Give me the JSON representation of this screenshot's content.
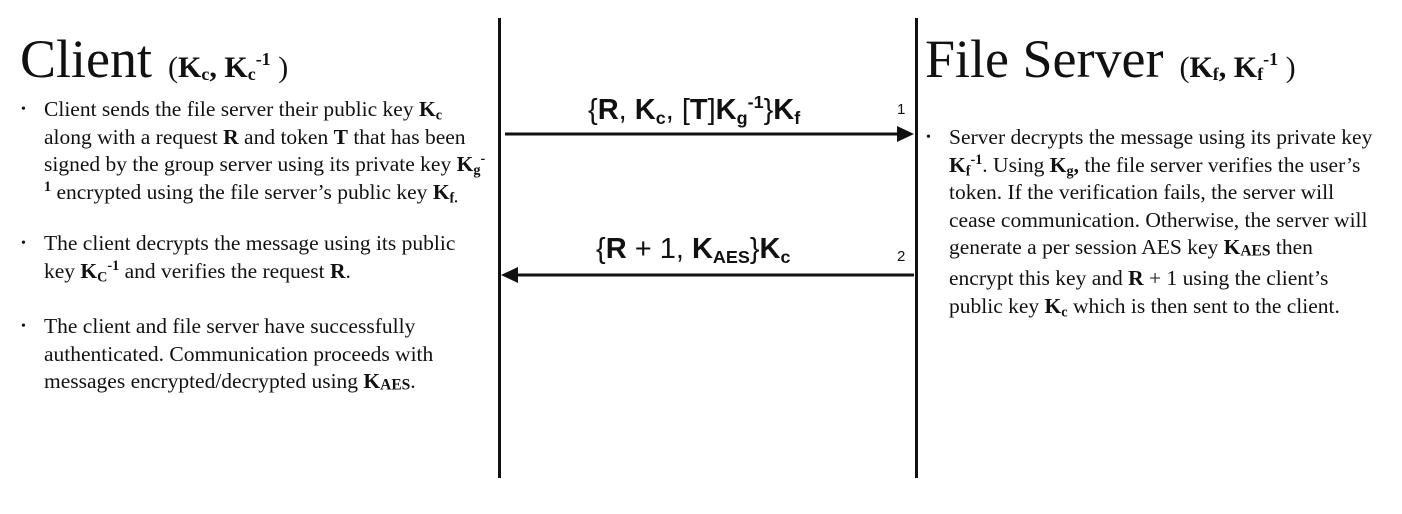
{
  "client": {
    "title": "Client",
    "keys_open": "(",
    "key1": "K",
    "key1_sub": "c",
    "sep": ",",
    "key2": "K",
    "key2_sub": "c",
    "key2_sup": "-1",
    "keys_close": ")",
    "bullets": [
      {
        "t1": "Client sends the file server their public key",
        "k1": "K",
        "k1_sub": "c",
        "t2": " along with a request ",
        "r": "R",
        "t3": " and token ",
        "tk": "T",
        "t4": " that has been signed by the group server using its private key ",
        "k2": "K",
        "k2_sub": "g",
        "k2_sup": "-1",
        "t5": " encrypted using the file server’s public key ",
        "k3": "K",
        "k3_sub": "f.",
        "t6": ""
      },
      {
        "t1": "The client decrypts the message using its public key ",
        "k1": "K",
        "k1_sub": "C",
        "k1_sup": "-1",
        "t2": " and verifies the request ",
        "r": "R",
        "t3": "."
      },
      {
        "t1": "The client and file server have successfully authenticated. Communication proceeds with messages encrypted/decrypted using ",
        "k1": "K",
        "k1_sub": "AES",
        "t2": "."
      }
    ]
  },
  "server": {
    "title": "File Server",
    "keys_open": "(",
    "key1": "K",
    "key1_sub": "f",
    "sep": ",",
    "key2": "K",
    "key2_sub": "f",
    "key2_sup": "-1",
    "keys_close": ")",
    "bullets": [
      {
        "t1": "Server decrypts the message using its private key ",
        "k1": "K",
        "k1_sub": "f",
        "k1_sup": "-1",
        "t2": ". Using ",
        "k2": "K",
        "k2_sub": "g",
        "k2_after": ",",
        "t3": " the file server verifies the user’s token. If the verification fails, the server will cease communication. Otherwise, the server will generate a per session AES key ",
        "k3": "K",
        "k3_sub": "AES",
        "t4": " then encrypt this key and ",
        "r": "R",
        "t5": " + 1 using the client’s public key ",
        "k4": "K",
        "k4_sub": "c",
        "t6": " which is then sent to the client."
      }
    ]
  },
  "messages": [
    {
      "number": "1",
      "direction": "client-to-server",
      "p1": "{",
      "r": "R",
      "p2": ", ",
      "kc": "K",
      "kc_sub": "c",
      "p3": ", [",
      "t": "T",
      "p4": "]",
      "kg": "K",
      "kg_sub": "g",
      "kg_sup": "-1",
      "p5": "}",
      "kf": "K",
      "kf_sub": "f"
    },
    {
      "number": "2",
      "direction": "server-to-client",
      "p1": "{",
      "r": "R",
      "p2": " + 1, ",
      "kaes": "K",
      "kaes_sub": "AES",
      "p3": "}",
      "kc": "K",
      "kc_sub": "c"
    }
  ]
}
